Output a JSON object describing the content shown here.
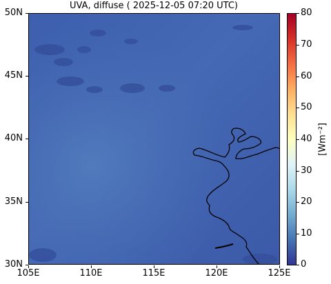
{
  "title": "UVA, diffuse ( 2025-12-05 07:20 UTC)",
  "map": {
    "lat_range": [
      30,
      50
    ],
    "lon_range": [
      105,
      125
    ],
    "field_value_typical": 9,
    "y_ticks": [
      {
        "value": 50,
        "label": "50N"
      },
      {
        "value": 45,
        "label": "45N"
      },
      {
        "value": 40,
        "label": "40N"
      },
      {
        "value": 35,
        "label": "35N"
      },
      {
        "value": 30,
        "label": "30N"
      }
    ],
    "x_ticks": [
      {
        "value": 105,
        "label": "105E"
      },
      {
        "value": 110,
        "label": "110E"
      },
      {
        "value": 115,
        "label": "115E"
      },
      {
        "value": 120,
        "label": "120E"
      },
      {
        "value": 125,
        "label": "125E"
      }
    ]
  },
  "colorbar": {
    "min": 0,
    "max": 80,
    "label": "[Wm⁻²]",
    "ticks": [
      "0",
      "10",
      "20",
      "30",
      "40",
      "50",
      "60",
      "70",
      "80"
    ],
    "colormap": [
      "#313695",
      "#4575b4",
      "#74add1",
      "#abd9e9",
      "#e0f3f8",
      "#ffffbf",
      "#fee090",
      "#fdae61",
      "#f46d43",
      "#d73027",
      "#a50026"
    ]
  }
}
